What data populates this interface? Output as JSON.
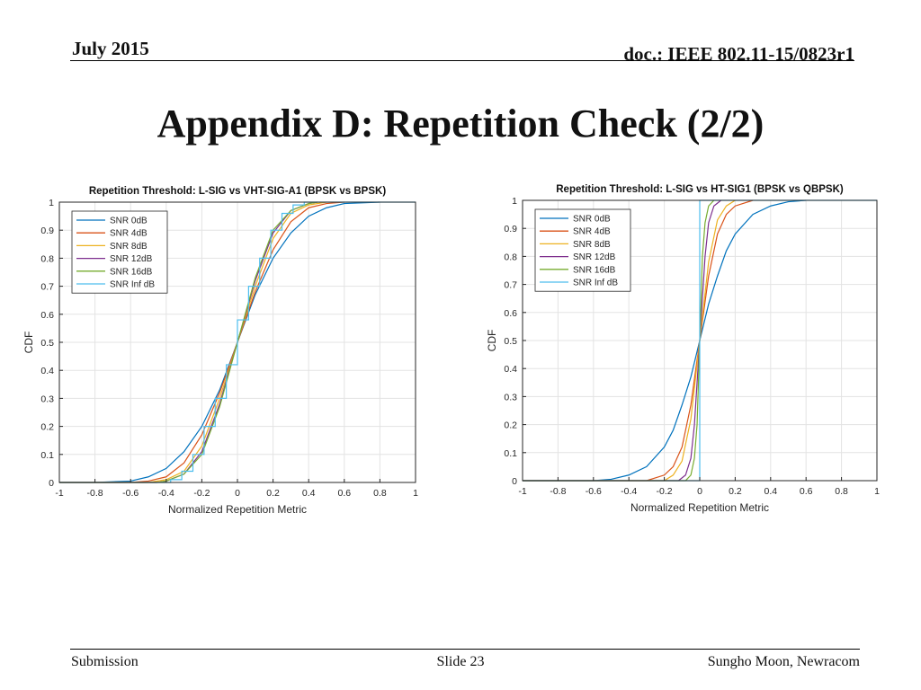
{
  "header": {
    "date": "July 2015",
    "doc": "doc.: IEEE 802.11-15/0823r1"
  },
  "slide_title": "Appendix D: Repetition Check (2/2)",
  "footer": {
    "left": "Submission",
    "center": "Slide 23",
    "right": "Sungho Moon, Newracom"
  },
  "colors": {
    "snr0": "#0072bd",
    "snr4": "#d95319",
    "snr8": "#edb120",
    "snr12": "#7e2f8e",
    "snr16": "#77ac30",
    "snrinf": "#4dbeee"
  },
  "chart_data": [
    {
      "type": "line",
      "title": "Repetition Threshold: L-SIG vs VHT-SIG-A1 (BPSK vs BPSK)",
      "xlabel": "Normalized Repetition Metric",
      "ylabel": "CDF",
      "xlim": [
        -1,
        1
      ],
      "ylim": [
        0,
        1
      ],
      "xticks": [
        -1,
        -0.8,
        -0.6,
        -0.4,
        -0.2,
        0,
        0.2,
        0.4,
        0.6,
        0.8,
        1
      ],
      "yticks": [
        0,
        0.1,
        0.2,
        0.3,
        0.4,
        0.5,
        0.6,
        0.7,
        0.8,
        0.9,
        1
      ],
      "grid": true,
      "legend_position": "top-left",
      "series": [
        {
          "name": "SNR 0dB",
          "color": "#0072bd",
          "x": [
            -1,
            -0.8,
            -0.6,
            -0.5,
            -0.4,
            -0.3,
            -0.2,
            -0.1,
            0,
            0.1,
            0.2,
            0.3,
            0.4,
            0.5,
            0.6,
            0.8
          ],
          "y": [
            0,
            0,
            0.005,
            0.02,
            0.05,
            0.11,
            0.2,
            0.33,
            0.5,
            0.67,
            0.8,
            0.89,
            0.95,
            0.98,
            0.995,
            1
          ]
        },
        {
          "name": "SNR 4dB",
          "color": "#d95319",
          "x": [
            -1,
            -0.6,
            -0.5,
            -0.4,
            -0.3,
            -0.2,
            -0.1,
            0,
            0.1,
            0.2,
            0.3,
            0.4,
            0.5,
            0.6
          ],
          "y": [
            0,
            0,
            0.005,
            0.02,
            0.07,
            0.17,
            0.32,
            0.5,
            0.68,
            0.83,
            0.93,
            0.98,
            0.995,
            1
          ]
        },
        {
          "name": "SNR 8dB",
          "color": "#edb120",
          "x": [
            -1,
            -0.5,
            -0.4,
            -0.3,
            -0.2,
            -0.1,
            0,
            0.1,
            0.2,
            0.3,
            0.4,
            0.5
          ],
          "y": [
            0,
            0,
            0.01,
            0.04,
            0.13,
            0.3,
            0.5,
            0.7,
            0.87,
            0.96,
            0.99,
            1
          ]
        },
        {
          "name": "SNR 12dB",
          "color": "#7e2f8e",
          "x": [
            -1,
            -0.45,
            -0.4,
            -0.3,
            -0.2,
            -0.1,
            0,
            0.1,
            0.2,
            0.3,
            0.4,
            0.45
          ],
          "y": [
            0,
            0,
            0.005,
            0.03,
            0.11,
            0.28,
            0.5,
            0.72,
            0.89,
            0.97,
            0.995,
            1
          ]
        },
        {
          "name": "SNR 16dB",
          "color": "#77ac30",
          "x": [
            -1,
            -0.45,
            -0.4,
            -0.3,
            -0.2,
            -0.1,
            0,
            0.1,
            0.2,
            0.3,
            0.4,
            0.45
          ],
          "y": [
            0,
            0,
            0.005,
            0.03,
            0.1,
            0.27,
            0.5,
            0.73,
            0.9,
            0.97,
            0.995,
            1
          ]
        },
        {
          "name": "SNR Inf dB",
          "color": "#4dbeee",
          "x": [
            -1,
            -0.375,
            -0.375,
            -0.3125,
            -0.3125,
            -0.25,
            -0.25,
            -0.1875,
            -0.1875,
            -0.125,
            -0.125,
            -0.0625,
            -0.0625,
            0,
            0,
            0.0625,
            0.0625,
            0.125,
            0.125,
            0.1875,
            0.1875,
            0.25,
            0.25,
            0.3125,
            0.3125,
            0.375,
            0.375,
            1
          ],
          "y": [
            0,
            0,
            0.01,
            0.01,
            0.04,
            0.04,
            0.1,
            0.1,
            0.2,
            0.2,
            0.3,
            0.3,
            0.42,
            0.42,
            0.58,
            0.58,
            0.7,
            0.7,
            0.8,
            0.8,
            0.9,
            0.9,
            0.96,
            0.96,
            0.99,
            0.99,
            1,
            1
          ]
        }
      ]
    },
    {
      "type": "line",
      "title": "Repetition Threshold: L-SIG vs HT-SIG1 (BPSK vs QBPSK)",
      "xlabel": "Normalized Repetition Metric",
      "ylabel": "CDF",
      "xlim": [
        -1,
        1
      ],
      "ylim": [
        0,
        1
      ],
      "xticks": [
        -1,
        -0.8,
        -0.6,
        -0.4,
        -0.2,
        0,
        0.2,
        0.4,
        0.6,
        0.8,
        1
      ],
      "yticks": [
        0,
        0.1,
        0.2,
        0.3,
        0.4,
        0.5,
        0.6,
        0.7,
        0.8,
        0.9,
        1
      ],
      "grid": true,
      "legend_position": "top-left",
      "series": [
        {
          "name": "SNR 0dB",
          "color": "#0072bd",
          "x": [
            -1,
            -0.6,
            -0.5,
            -0.4,
            -0.3,
            -0.2,
            -0.15,
            -0.1,
            -0.05,
            0,
            0.05,
            0.1,
            0.15,
            0.2,
            0.3,
            0.4,
            0.5,
            0.6
          ],
          "y": [
            0,
            0,
            0.005,
            0.02,
            0.05,
            0.12,
            0.18,
            0.27,
            0.37,
            0.5,
            0.63,
            0.73,
            0.82,
            0.88,
            0.95,
            0.98,
            0.995,
            1
          ]
        },
        {
          "name": "SNR 4dB",
          "color": "#d95319",
          "x": [
            -1,
            -0.3,
            -0.2,
            -0.15,
            -0.1,
            -0.05,
            0,
            0.05,
            0.1,
            0.15,
            0.2,
            0.3
          ],
          "y": [
            0,
            0,
            0.02,
            0.05,
            0.12,
            0.27,
            0.5,
            0.73,
            0.88,
            0.95,
            0.98,
            1
          ]
        },
        {
          "name": "SNR 8dB",
          "color": "#edb120",
          "x": [
            -1,
            -0.2,
            -0.15,
            -0.1,
            -0.05,
            0,
            0.05,
            0.1,
            0.15,
            0.2
          ],
          "y": [
            0,
            0,
            0.02,
            0.07,
            0.22,
            0.5,
            0.78,
            0.93,
            0.98,
            1
          ]
        },
        {
          "name": "SNR 12dB",
          "color": "#7e2f8e",
          "x": [
            -1,
            -0.12,
            -0.08,
            -0.05,
            -0.03,
            0,
            0.03,
            0.05,
            0.08,
            0.12
          ],
          "y": [
            0,
            0,
            0.02,
            0.08,
            0.2,
            0.5,
            0.8,
            0.92,
            0.98,
            1
          ]
        },
        {
          "name": "SNR 16dB",
          "color": "#77ac30",
          "x": [
            -1,
            -0.08,
            -0.05,
            -0.03,
            -0.015,
            0,
            0.015,
            0.03,
            0.05,
            0.08
          ],
          "y": [
            0,
            0,
            0.02,
            0.08,
            0.2,
            0.5,
            0.8,
            0.92,
            0.98,
            1
          ]
        },
        {
          "name": "SNR Inf dB",
          "color": "#4dbeee",
          "x": [
            -1,
            0,
            0,
            1
          ],
          "y": [
            0,
            0,
            1,
            1
          ]
        }
      ]
    }
  ]
}
